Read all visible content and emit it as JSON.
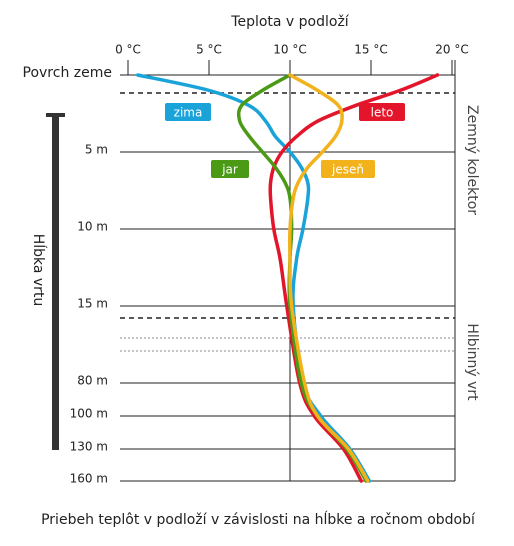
{
  "chart_data": {
    "type": "line",
    "title": "Priebeh teplôt v podloží v závislosti na hĺbke a ročnom období",
    "x_axis_label": "Teplota v podloží",
    "depth_axis_label": "Hĺbka vrtu",
    "zone_labels": [
      "Zemný kolektor",
      "Hlbinný vrt"
    ],
    "xlim": [
      0,
      20
    ],
    "xticks": [
      {
        "value": 0,
        "label": "0 °C"
      },
      {
        "value": 5,
        "label": "5 °C"
      },
      {
        "value": 10,
        "label": "10 °C"
      },
      {
        "value": 15,
        "label": "15 °C"
      },
      {
        "value": 20,
        "label": "20 °C"
      }
    ],
    "ylim": [
      0,
      160
    ],
    "yticks": [
      {
        "value": 0,
        "label": "Povrch zeme"
      },
      {
        "value": 5,
        "label": "5 m"
      },
      {
        "value": 10,
        "label": "10 m"
      },
      {
        "value": 15,
        "label": "15 m"
      },
      {
        "value": 80,
        "label": "80 m"
      },
      {
        "value": 100,
        "label": "100 m"
      },
      {
        "value": 130,
        "label": "130 m"
      },
      {
        "value": 160,
        "label": "160 m"
      }
    ],
    "depths": [
      0,
      1,
      2,
      3,
      4,
      5,
      6,
      7,
      8,
      10,
      12,
      15,
      80,
      100,
      130,
      160
    ],
    "series": [
      {
        "name": "zima",
        "color": "#1aa3d9",
        "values": [
          0.6,
          5,
          7.5,
          8.5,
          9.1,
          10,
          10.7,
          11.1,
          11.1,
          10.8,
          10.4,
          10.2,
          10.8,
          11.9,
          13.7,
          14.9
        ]
      },
      {
        "name": "leto",
        "color": "#e3152b",
        "values": [
          19.1,
          16.8,
          14,
          11.7,
          10.4,
          9.5,
          9,
          8.8,
          8.8,
          9,
          9.4,
          9.8,
          10.6,
          11.5,
          13.3,
          14.4
        ]
      },
      {
        "name": "jar",
        "color": "#4a9a16",
        "values": [
          10,
          8.3,
          7,
          6.9,
          7.5,
          8.3,
          9.1,
          9.7,
          10,
          10.1,
          10,
          10,
          10.7,
          11.7,
          13.5,
          14.7
        ]
      },
      {
        "name": "jeseň",
        "color": "#f1b21c",
        "values": [
          10,
          11.7,
          13,
          13.2,
          12.8,
          12,
          11.1,
          10.5,
          10.2,
          10,
          10,
          10.1,
          10.9,
          11.7,
          13.6,
          14.8
        ]
      }
    ]
  }
}
